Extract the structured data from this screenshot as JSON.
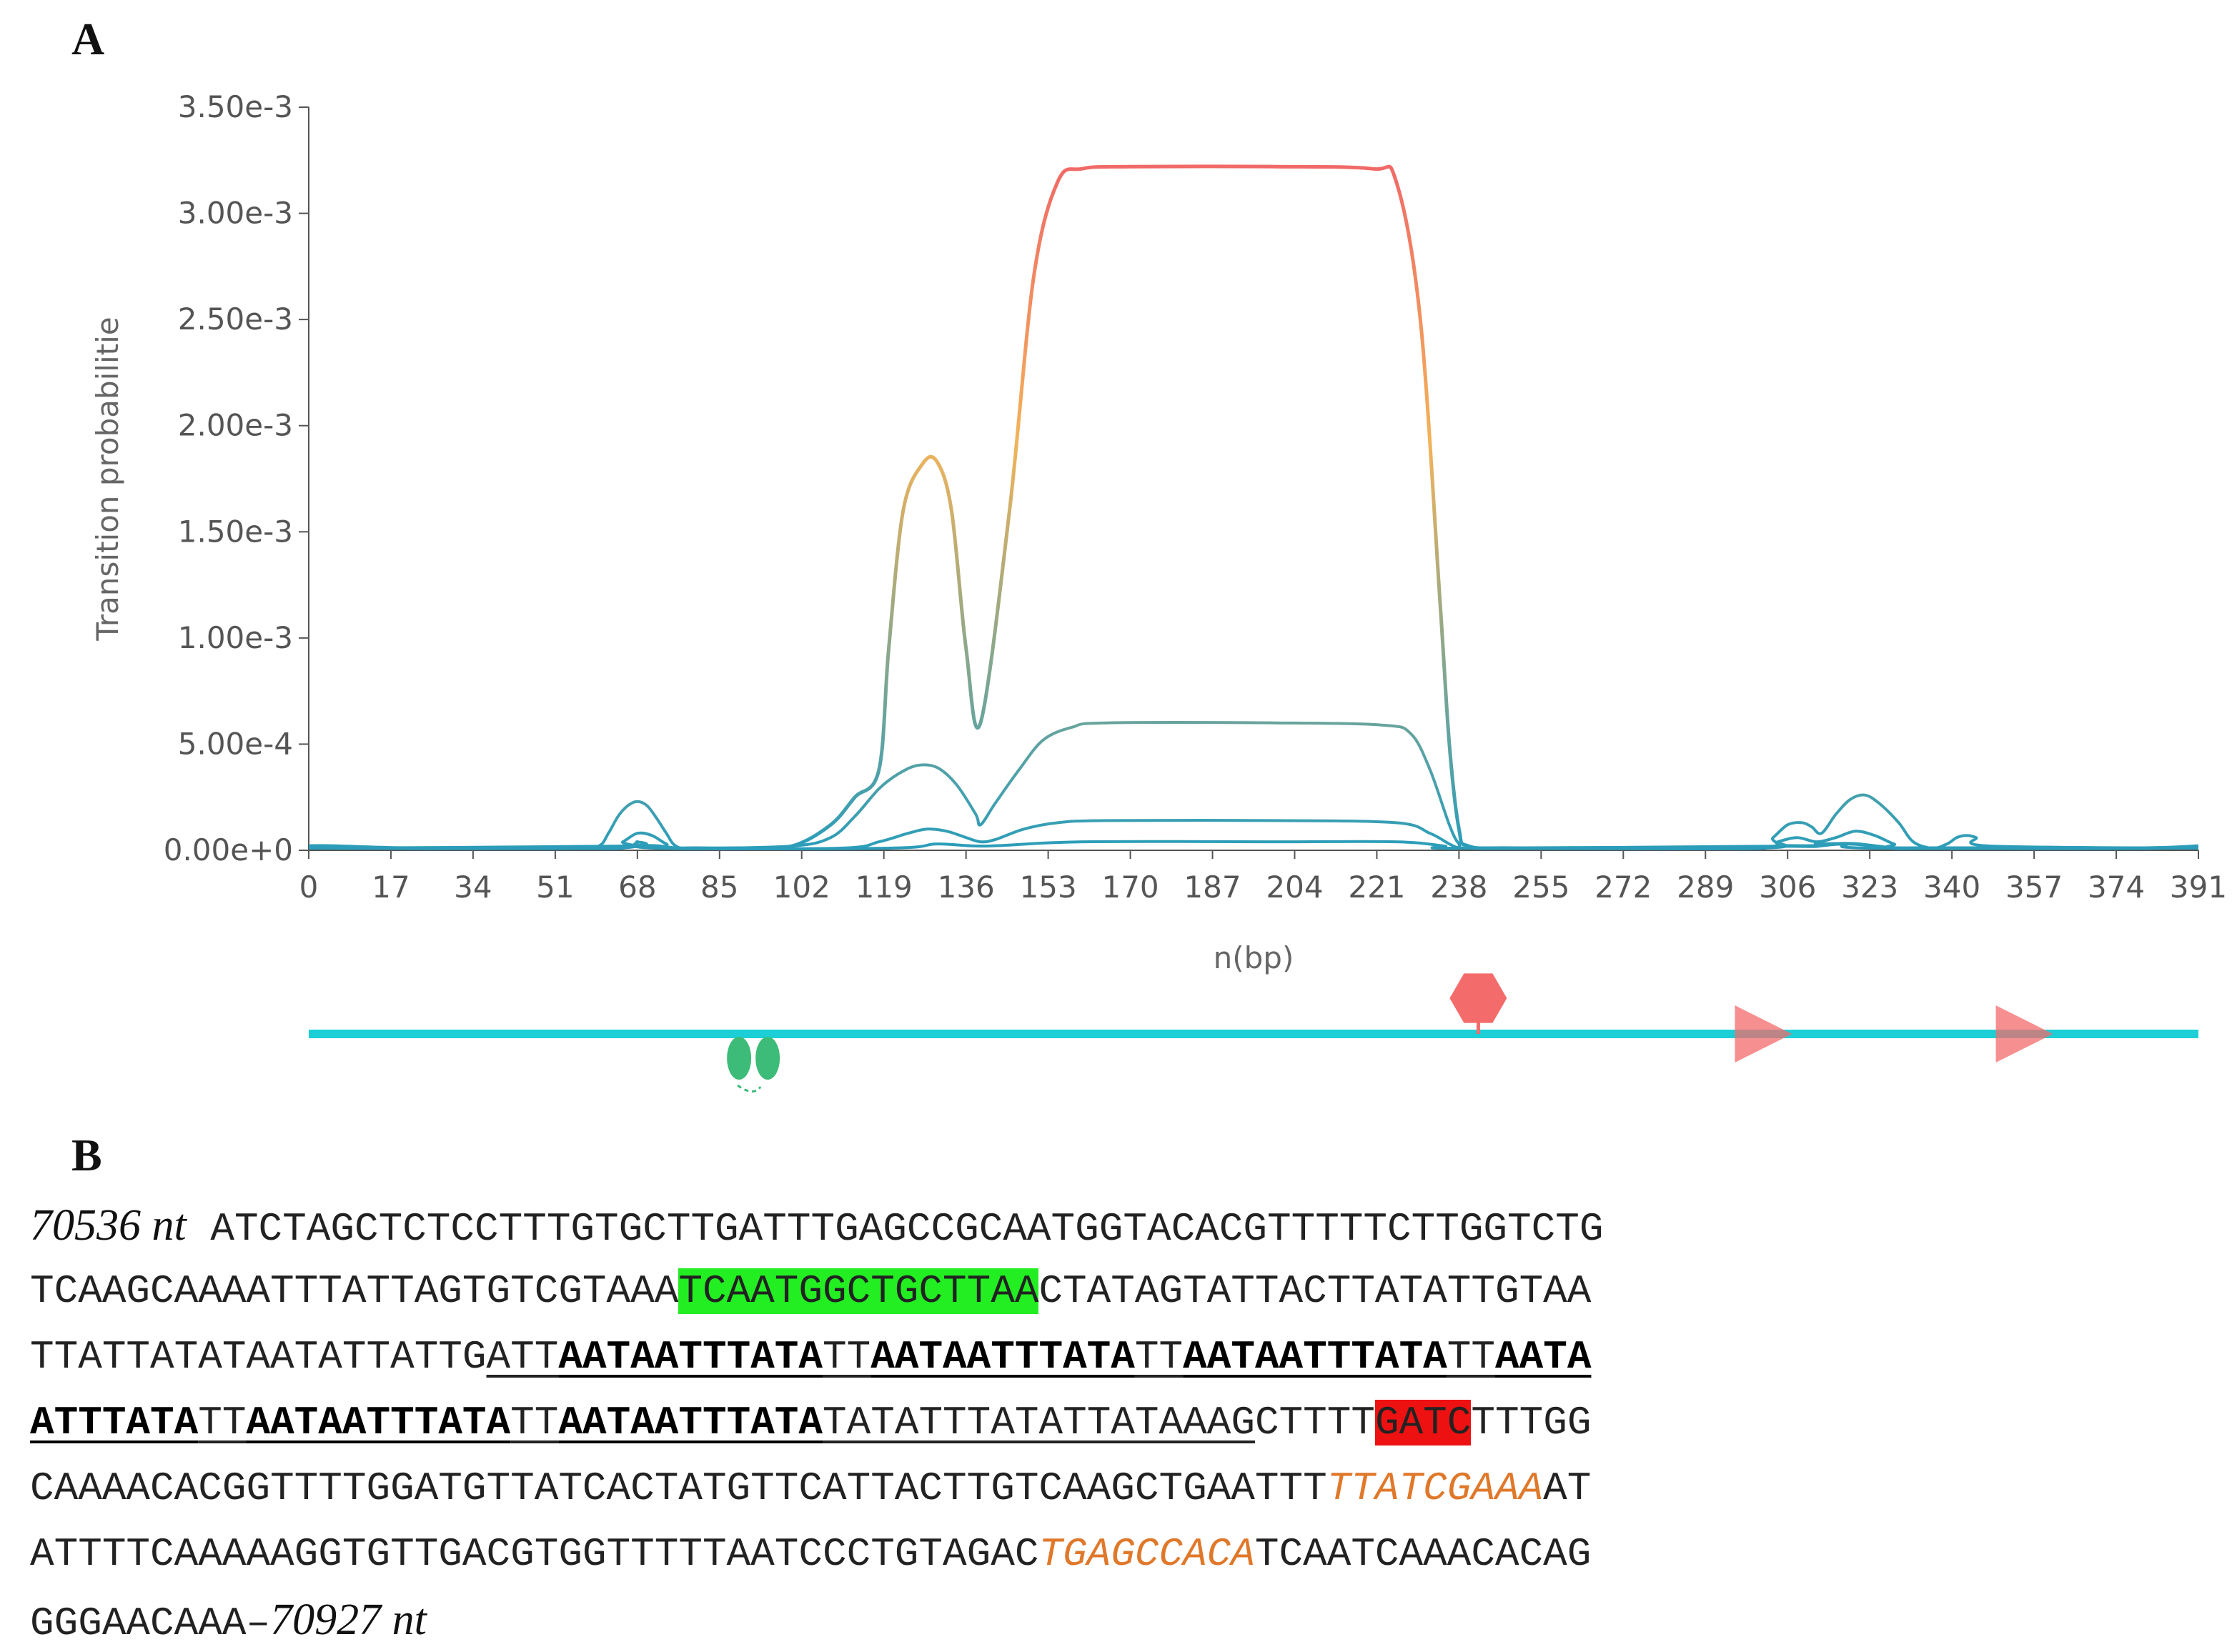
{
  "panels": {
    "a_label": "A",
    "b_label": "B"
  },
  "chart_data": {
    "type": "line",
    "xlabel": "n(bp)",
    "ylabel": "Transition probabilitie",
    "xlim": [
      0,
      391
    ],
    "ylim": [
      0,
      0.0035
    ],
    "x_ticks": [
      "0",
      "17",
      "34",
      "51",
      "68",
      "85",
      "102",
      "119",
      "136",
      "153",
      "170",
      "187",
      "204",
      "221",
      "238",
      "255",
      "272",
      "289",
      "306",
      "323",
      "340",
      "357",
      "374",
      "391"
    ],
    "y_ticks": [
      "0.00e+0",
      "5.00e-4",
      "1.00e-3",
      "1.50e-3",
      "2.00e-3",
      "2.50e-3",
      "3.00e-3",
      "3.50e-3"
    ],
    "grid": false,
    "gradient_colors": {
      "low": "#2a9dba",
      "mid": "#f2b35a",
      "high": "#f05a6a"
    },
    "series": [
      {
        "x": [
          0,
          5,
          20,
          40,
          60,
          64,
          68,
          72,
          76,
          80,
          90,
          100,
          108,
          113,
          118,
          120,
          123,
          127,
          130,
          133,
          136,
          139,
          145,
          150,
          155,
          160,
          170,
          200,
          220,
          225,
          230,
          234,
          236,
          238,
          240,
          250,
          290,
          300,
          304,
          309,
          312,
          316,
          320,
          324,
          328,
          332,
          338,
          342,
          345,
          350,
          380,
          391
        ],
        "y": [
          2e-05,
          2e-05,
          1e-05,
          1e-05,
          1e-05,
          1e-05,
          2e-05,
          2e-05,
          1e-05,
          1e-05,
          1e-05,
          2e-05,
          0.00012,
          0.00025,
          0.00038,
          0.00095,
          0.0016,
          0.00182,
          0.00183,
          0.0016,
          0.00095,
          0.0006,
          0.0016,
          0.0027,
          0.00315,
          0.00321,
          0.00322,
          0.00322,
          0.00321,
          0.00315,
          0.0025,
          0.0012,
          0.0005,
          0.0001,
          2e-05,
          1e-05,
          1e-05,
          1e-05,
          2e-05,
          2e-05,
          2e-05,
          3e-05,
          3e-05,
          2e-05,
          1e-05,
          1e-05,
          1e-05,
          1e-05,
          1e-05,
          1e-05,
          1e-05,
          2e-05
        ]
      },
      {
        "x": [
          0,
          55,
          60,
          62,
          64,
          66,
          68,
          70,
          72,
          74,
          76,
          80,
          100,
          108,
          113,
          118,
          122,
          126,
          130,
          134,
          138,
          139,
          142,
          147,
          152,
          158,
          165,
          200,
          222,
          228,
          232,
          236,
          238,
          240,
          260,
          300,
          303,
          306,
          309,
          311,
          313,
          316,
          319,
          322,
          325,
          329,
          332,
          336,
          339,
          341,
          343,
          345,
          348,
          391
        ],
        "y": [
          1e-05,
          1e-05,
          2e-05,
          8e-05,
          0.00016,
          0.00021,
          0.00023,
          0.00021,
          0.00015,
          8e-05,
          2e-05,
          1e-05,
          2e-05,
          6e-05,
          0.00016,
          0.00029,
          0.00036,
          0.0004,
          0.00039,
          0.00031,
          0.00017,
          0.00012,
          0.00022,
          0.00038,
          0.00052,
          0.00058,
          0.0006,
          0.0006,
          0.00059,
          0.00055,
          0.00038,
          0.00012,
          3e-05,
          1e-05,
          1e-05,
          1e-05,
          6e-05,
          0.00012,
          0.00013,
          0.00011,
          8e-05,
          0.00017,
          0.00024,
          0.00026,
          0.00022,
          0.00013,
          4e-05,
          1e-05,
          3e-05,
          6e-05,
          7e-05,
          6e-05,
          2e-05,
          1e-05
        ]
      },
      {
        "x": [
          0,
          62,
          65,
          68,
          71,
          74,
          77,
          110,
          118,
          124,
          128,
          132,
          136,
          139,
          142,
          148,
          155,
          165,
          200,
          225,
          232,
          236,
          238,
          240,
          300,
          304,
          308,
          312,
          316,
          320,
          324,
          328,
          332,
          391
        ],
        "y": [
          1e-05,
          1e-05,
          4e-05,
          8e-05,
          7e-05,
          3e-05,
          1e-05,
          1e-05,
          4e-05,
          8e-05,
          0.0001,
          9e-05,
          6e-05,
          4e-05,
          5e-05,
          0.0001,
          0.00013,
          0.00014,
          0.00014,
          0.00013,
          8e-05,
          3e-05,
          1e-05,
          1e-05,
          1e-05,
          4e-05,
          6e-05,
          4e-05,
          6e-05,
          9e-05,
          7e-05,
          3e-05,
          1e-05,
          1e-05
        ]
      },
      {
        "x": [
          0,
          64,
          68,
          72,
          120,
          130,
          140,
          160,
          200,
          225,
          235,
          238,
          306,
          312,
          318,
          324,
          391
        ],
        "y": [
          1e-05,
          2e-05,
          4e-05,
          1e-05,
          1e-05,
          3e-05,
          2e-05,
          4e-05,
          4e-05,
          4e-05,
          2e-05,
          1e-05,
          2e-05,
          3e-05,
          3e-05,
          1e-05,
          1e-05
        ]
      }
    ],
    "track": {
      "terminator_symbol_bp": 92,
      "stop_symbol_bp": 242,
      "arrow_marks_bp": [
        301,
        355
      ]
    }
  },
  "sequence": {
    "start_coord": "70536 nt",
    "end_coord": "70927 nt",
    "end_prefix": "GGGAACAAA",
    "end_dash": "–",
    "lines": [
      [
        {
          "t": "ATCTAGCTCTCCTTTGTGCTTGATTTGAGCCGCAATGGTACACGTTTTTCTTGGTCTG",
          "s": "plain"
        }
      ],
      [
        {
          "t": "TCAAGCAAAATTTATTAGTGTCGTAAA",
          "s": "plain"
        },
        {
          "t": "TCAATGGCTGCTTAA",
          "s": "green"
        },
        {
          "t": "CTATAGTATTACTTATATTGTAA",
          "s": "plain"
        }
      ],
      [
        {
          "t": "TTATTATATAATATTATTG",
          "s": "plain"
        },
        {
          "t": "ATT",
          "s": "ul"
        },
        {
          "t": "AATAATTTATA",
          "s": "bold-ul"
        },
        {
          "t": "TT",
          "s": "ul"
        },
        {
          "t": "AATAATTTATA",
          "s": "bold-ul"
        },
        {
          "t": "TT",
          "s": "ul"
        },
        {
          "t": "AATAATTTATA",
          "s": "bold-ul"
        },
        {
          "t": "TT",
          "s": "ul"
        },
        {
          "t": "AATA",
          "s": "bold-ul"
        }
      ],
      [
        {
          "t": "ATTTATA",
          "s": "bold-ul"
        },
        {
          "t": "TT",
          "s": "ul"
        },
        {
          "t": "AATAATTTATA",
          "s": "bold-ul"
        },
        {
          "t": "TT",
          "s": "ul"
        },
        {
          "t": "AATAATTTATA",
          "s": "bold-ul"
        },
        {
          "t": "TATATTTATATTATAAAG",
          "s": "ul"
        },
        {
          "t": "CTTTT",
          "s": "plain"
        },
        {
          "t": "GATC",
          "s": "red"
        },
        {
          "t": "TTTGG",
          "s": "plain"
        }
      ],
      [
        {
          "t": "CAAAACACGGTTTTGGATGTTATCACTATGTTCATTACTTGTCAAGCTGAATTT",
          "s": "plain"
        },
        {
          "t": "TTATCGAAA",
          "s": "orange"
        },
        {
          "t": "AT",
          "s": "plain"
        }
      ],
      [
        {
          "t": "ATTTTCAAAAAGGTGTTGACGTGGTTTTTAATCCCTGTAGAC",
          "s": "plain"
        },
        {
          "t": "TGAGCCACA",
          "s": "orange"
        },
        {
          "t": "TCAATCAAACACAG",
          "s": "plain"
        }
      ]
    ]
  }
}
